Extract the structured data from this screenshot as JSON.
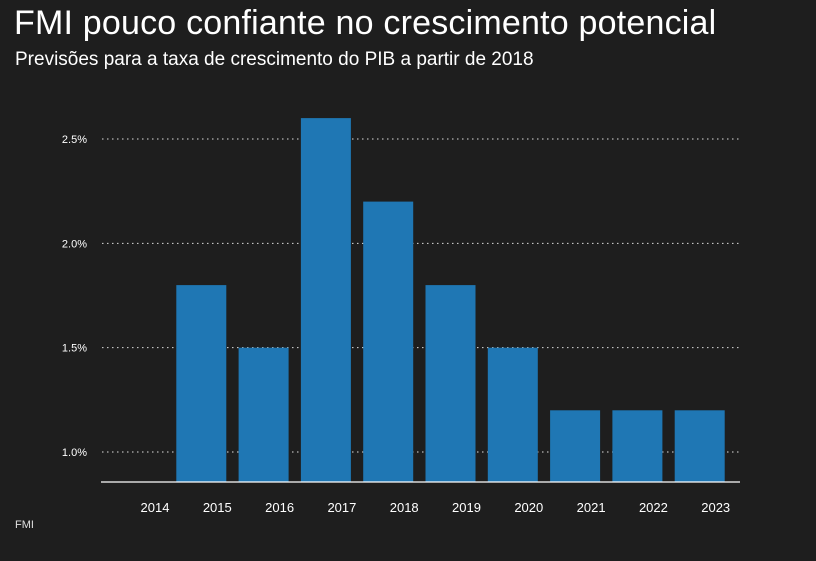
{
  "header": {
    "title": "FMI pouco confiante no crescimento potencial",
    "subtitle": "Previsões para a taxa de crescimento do PIB a partir de 2018"
  },
  "source": "FMI",
  "chart_data": {
    "type": "bar",
    "categories": [
      "2014",
      "2015",
      "2016",
      "2017",
      "2018",
      "2019",
      "2020",
      "2021",
      "2022",
      "2023"
    ],
    "values": [
      0.85,
      1.8,
      1.5,
      2.6,
      2.2,
      1.8,
      1.5,
      1.2,
      1.2,
      1.2
    ],
    "title": "FMI pouco confiante no crescimento potencial",
    "subtitle": "Previsões para a taxa de crescimento do PIB a partir de 2018",
    "y_ticks": [
      1.0,
      1.5,
      2.0,
      2.5
    ],
    "y_tick_labels": [
      "1.0%",
      "1.5%",
      "2.0%",
      "2.5%"
    ],
    "ylim": [
      0.8,
      2.65
    ],
    "grid": true,
    "bar_color": "#1f77b4",
    "background_color": "#1e1e1e"
  }
}
